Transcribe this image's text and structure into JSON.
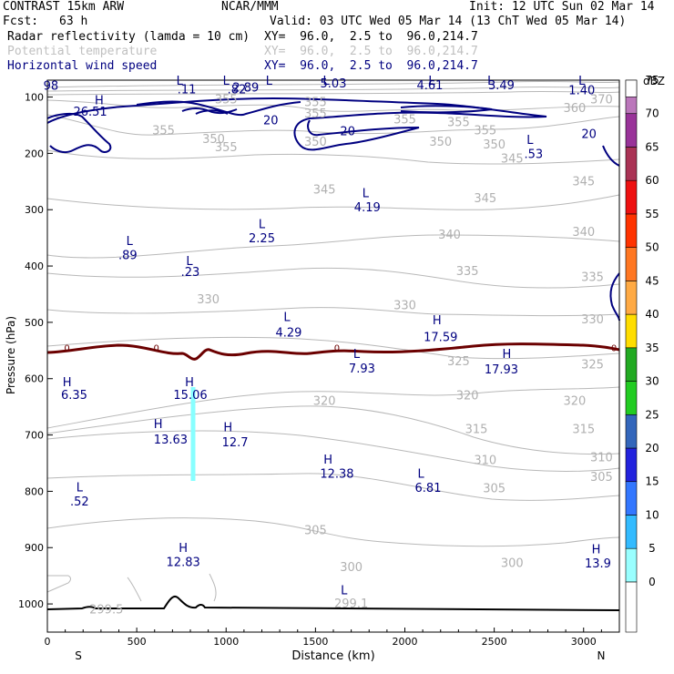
{
  "header": {
    "model": "CONTRAST 15km ARW",
    "org": "NCAR/MMM",
    "init": "Init: 12 UTC Sun 02 Mar 14",
    "fcst_label": "Fcst:",
    "fcst_value": "63 h",
    "valid": "Valid: 03 UTC Wed 05 Mar 14 (13 ChT Wed 05 Mar 14)",
    "field1_name": "Radar reflectivity (lamda = 10 cm)",
    "field1_xy": "XY=  96.0,  2.5 to  96.0,214.7",
    "field2_name": "Potential temperature",
    "field2_xy": "XY=  96.0,  2.5 to  96.0,214.7",
    "field3_name": "Horizontal wind speed",
    "field3_xy": "XY=  96.0,  2.5 to  96.0,214.7"
  },
  "chart_data": {
    "type": "contour-cross-section",
    "xlabel": "Distance (km)",
    "ylabel": "Pressure (hPa)",
    "xlim": [
      0,
      3200
    ],
    "ylim": [
      1050,
      70
    ],
    "x_ticks": [
      0,
      500,
      1000,
      1500,
      2000,
      2500,
      3000
    ],
    "y_ticks": [
      100,
      200,
      300,
      400,
      500,
      600,
      700,
      800,
      900,
      1000
    ],
    "x_end_labels": {
      "left": "S",
      "right": "N"
    },
    "colorbar": {
      "unit": "dBZ",
      "levels": [
        "0",
        "5",
        "10",
        "15",
        "20",
        "25",
        "30",
        "35",
        "40",
        "45",
        "50",
        "55",
        "60",
        "65",
        "70",
        "75"
      ],
      "colors": [
        "#ffffff",
        "#99ffff",
        "#33bbff",
        "#3377ff",
        "#2222dd",
        "#3366bb",
        "#22cc22",
        "#22aa22",
        "#ffdd00",
        "#ffaa44",
        "#ff7722",
        "#ff3300",
        "#ee1111",
        "#aa3355",
        "#993399",
        "#bb77bb"
      ]
    },
    "theta_labels": [
      {
        "x": 1000,
        "p": 190,
        "t": "355"
      },
      {
        "x": 1500,
        "p": 130,
        "t": "355"
      },
      {
        "x": 2000,
        "p": 140,
        "t": "355"
      },
      {
        "x": 2300,
        "p": 145,
        "t": "355"
      },
      {
        "x": 2450,
        "p": 160,
        "t": "355"
      },
      {
        "x": 650,
        "p": 160,
        "t": "355"
      },
      {
        "x": 2950,
        "p": 120,
        "t": "360"
      },
      {
        "x": 3100,
        "p": 105,
        "t": "370"
      },
      {
        "x": 1500,
        "p": 110,
        "t": "355"
      },
      {
        "x": 1000,
        "p": 105,
        "t": "355"
      },
      {
        "x": 930,
        "p": 175,
        "t": "350"
      },
      {
        "x": 1500,
        "p": 180,
        "t": "350"
      },
      {
        "x": 2200,
        "p": 180,
        "t": "350"
      },
      {
        "x": 2500,
        "p": 185,
        "t": "350"
      },
      {
        "x": 2600,
        "p": 210,
        "t": "345"
      },
      {
        "x": 1550,
        "p": 265,
        "t": "345"
      },
      {
        "x": 2450,
        "p": 280,
        "t": "345"
      },
      {
        "x": 3000,
        "p": 250,
        "t": "345"
      },
      {
        "x": 2250,
        "p": 345,
        "t": "340"
      },
      {
        "x": 3000,
        "p": 340,
        "t": "340"
      },
      {
        "x": 2350,
        "p": 410,
        "t": "335"
      },
      {
        "x": 3050,
        "p": 420,
        "t": "335"
      },
      {
        "x": 900,
        "p": 460,
        "t": "330"
      },
      {
        "x": 2000,
        "p": 470,
        "t": "330"
      },
      {
        "x": 3050,
        "p": 495,
        "t": "330"
      },
      {
        "x": 2300,
        "p": 570,
        "t": "325"
      },
      {
        "x": 3050,
        "p": 575,
        "t": "325"
      },
      {
        "x": 1550,
        "p": 640,
        "t": "320"
      },
      {
        "x": 2350,
        "p": 630,
        "t": "320"
      },
      {
        "x": 2950,
        "p": 640,
        "t": "320"
      },
      {
        "x": 2400,
        "p": 690,
        "t": "315"
      },
      {
        "x": 3000,
        "p": 690,
        "t": "315"
      },
      {
        "x": 2450,
        "p": 745,
        "t": "310"
      },
      {
        "x": 3100,
        "p": 740,
        "t": "310"
      },
      {
        "x": 2500,
        "p": 795,
        "t": "305"
      },
      {
        "x": 3100,
        "p": 775,
        "t": "305"
      },
      {
        "x": 1500,
        "p": 870,
        "t": "305"
      },
      {
        "x": 1700,
        "p": 935,
        "t": "300"
      },
      {
        "x": 2600,
        "p": 928,
        "t": "300"
      },
      {
        "x": 1700,
        "p": 1000,
        "t": "299.1"
      },
      {
        "x": 330,
        "p": 1010,
        "t": "299.5"
      }
    ],
    "wind_labels": [
      {
        "x": 240,
        "p": 125,
        "t": "26.51"
      },
      {
        "x": 1110,
        "p": 82,
        "t": "2.89"
      },
      {
        "x": 1600,
        "p": 75,
        "t": "5.03"
      },
      {
        "x": 2140,
        "p": 78,
        "t": "4.61"
      },
      {
        "x": 2540,
        "p": 78,
        "t": "3.49"
      },
      {
        "x": 2990,
        "p": 87,
        "t": "1.40"
      },
      {
        "x": 2720,
        "p": 200,
        "t": ".53"
      },
      {
        "x": 1790,
        "p": 295,
        "t": "4.19"
      },
      {
        "x": 1200,
        "p": 350,
        "t": "2.25"
      },
      {
        "x": 450,
        "p": 380,
        "t": ".89"
      },
      {
        "x": 800,
        "p": 410,
        "t": ".23"
      },
      {
        "x": 1350,
        "p": 517,
        "t": "4.29"
      },
      {
        "x": 2200,
        "p": 525,
        "t": "17.59"
      },
      {
        "x": 1760,
        "p": 581,
        "t": "7.93"
      },
      {
        "x": 2540,
        "p": 583,
        "t": "17.93"
      },
      {
        "x": 800,
        "p": 628,
        "t": "15.06"
      },
      {
        "x": 150,
        "p": 628,
        "t": "6.35"
      },
      {
        "x": 690,
        "p": 707,
        "t": "13.63"
      },
      {
        "x": 1050,
        "p": 712,
        "t": "12.7"
      },
      {
        "x": 1620,
        "p": 768,
        "t": "12.38"
      },
      {
        "x": 2130,
        "p": 793,
        "t": "6.81"
      },
      {
        "x": 180,
        "p": 817,
        "t": ".52"
      },
      {
        "x": 760,
        "p": 925,
        "t": "12.83"
      },
      {
        "x": 3080,
        "p": 927,
        "t": "13.9"
      },
      {
        "x": 1060,
        "p": 85,
        "t": ".82"
      },
      {
        "x": 780,
        "p": 85,
        "t": ".11"
      },
      {
        "x": 20,
        "p": 79,
        "t": "98"
      },
      {
        "x": 1250,
        "p": 140,
        "t": "20"
      },
      {
        "x": 1680,
        "p": 160,
        "t": "20"
      },
      {
        "x": 3030,
        "p": 165,
        "t": "20"
      }
    ],
    "extrema_letters": [
      {
        "x": 290,
        "p": 105,
        "t": "H"
      },
      {
        "x": 740,
        "p": 70,
        "t": "L"
      },
      {
        "x": 1000,
        "p": 70,
        "t": "L"
      },
      {
        "x": 1240,
        "p": 70,
        "t": "L"
      },
      {
        "x": 1560,
        "p": 70,
        "t": "L"
      },
      {
        "x": 2150,
        "p": 70,
        "t": "L"
      },
      {
        "x": 2480,
        "p": 70,
        "t": "L"
      },
      {
        "x": 2990,
        "p": 70,
        "t": "L"
      },
      {
        "x": 2700,
        "p": 175,
        "t": "L"
      },
      {
        "x": 1780,
        "p": 270,
        "t": "L"
      },
      {
        "x": 1200,
        "p": 325,
        "t": "L"
      },
      {
        "x": 460,
        "p": 355,
        "t": "L"
      },
      {
        "x": 795,
        "p": 390,
        "t": "L"
      },
      {
        "x": 1340,
        "p": 490,
        "t": "L"
      },
      {
        "x": 2180,
        "p": 495,
        "t": "H"
      },
      {
        "x": 1730,
        "p": 555,
        "t": "L"
      },
      {
        "x": 2570,
        "p": 555,
        "t": "H"
      },
      {
        "x": 795,
        "p": 605,
        "t": "H"
      },
      {
        "x": 110,
        "p": 605,
        "t": "H"
      },
      {
        "x": 620,
        "p": 680,
        "t": "H"
      },
      {
        "x": 1010,
        "p": 685,
        "t": "H"
      },
      {
        "x": 1570,
        "p": 743,
        "t": "H"
      },
      {
        "x": 2090,
        "p": 768,
        "t": "L"
      },
      {
        "x": 180,
        "p": 792,
        "t": "L"
      },
      {
        "x": 760,
        "p": 900,
        "t": "H"
      },
      {
        "x": 3070,
        "p": 902,
        "t": "H"
      },
      {
        "x": 1660,
        "p": 975,
        "t": "L"
      }
    ],
    "zero_labels": [
      {
        "x": 110,
        "p": 545,
        "t": "0"
      },
      {
        "x": 610,
        "p": 545,
        "t": "0"
      },
      {
        "x": 1620,
        "p": 545,
        "t": "0"
      },
      {
        "x": 3170,
        "p": 545,
        "t": "0"
      }
    ]
  }
}
